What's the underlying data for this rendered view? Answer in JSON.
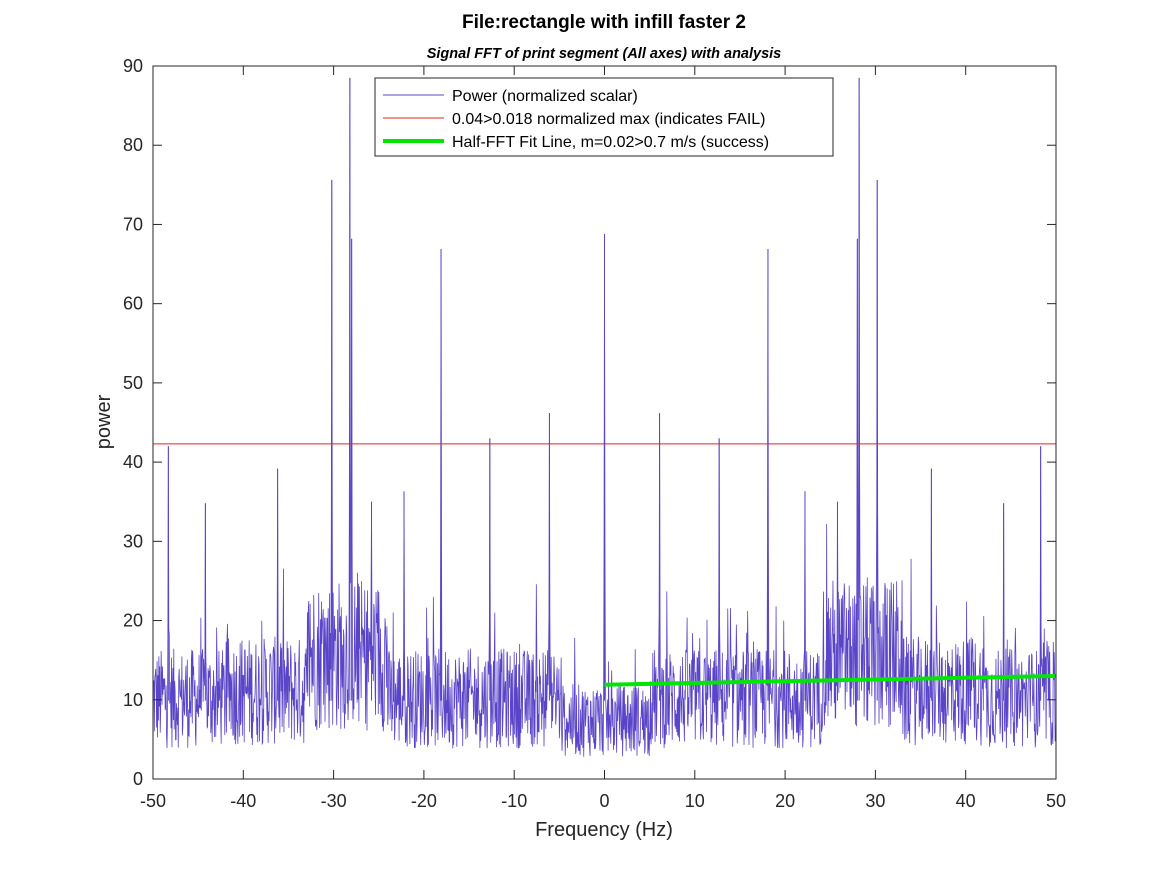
{
  "chart_data": {
    "type": "line",
    "title": "File:rectangle with infill faster 2",
    "subtitle": "Signal FFT of print segment (All axes) with analysis",
    "xlabel": "Frequency (Hz)",
    "ylabel": "power",
    "xlim": [
      -50,
      50
    ],
    "ylim": [
      0,
      90
    ],
    "x_ticks": [
      -50,
      -40,
      -30,
      -20,
      -10,
      0,
      10,
      20,
      30,
      40,
      50
    ],
    "y_ticks": [
      0,
      10,
      20,
      30,
      40,
      50,
      60,
      70,
      80,
      90
    ],
    "grid": false,
    "legend_position": "top-center",
    "series": [
      {
        "name": "Power (normalized scalar)",
        "color": "#5a44c8",
        "kind": "spectrum",
        "noise_level": 11,
        "peaks": [
          {
            "x": -48.3,
            "y": 42
          },
          {
            "x": -44.2,
            "y": 34.8
          },
          {
            "x": -36.2,
            "y": 39.2
          },
          {
            "x": -30.2,
            "y": 75.6
          },
          {
            "x": -28.2,
            "y": 88.5
          },
          {
            "x": -28.0,
            "y": 68.2
          },
          {
            "x": -25.8,
            "y": 35
          },
          {
            "x": -22.2,
            "y": 36.3
          },
          {
            "x": -18.1,
            "y": 66.9
          },
          {
            "x": -12.7,
            "y": 43
          },
          {
            "x": -6.1,
            "y": 46.2
          },
          {
            "x": 0.0,
            "y": 68.8
          },
          {
            "x": 6.1,
            "y": 46.2
          },
          {
            "x": 12.7,
            "y": 43
          },
          {
            "x": 18.1,
            "y": 66.9
          },
          {
            "x": 22.2,
            "y": 36.3
          },
          {
            "x": 25.8,
            "y": 35
          },
          {
            "x": 28.0,
            "y": 68.2
          },
          {
            "x": 28.2,
            "y": 88.5
          },
          {
            "x": 30.2,
            "y": 75.6
          },
          {
            "x": 36.2,
            "y": 39.2
          },
          {
            "x": 44.2,
            "y": 34.8
          },
          {
            "x": 48.3,
            "y": 42
          }
        ]
      },
      {
        "name": "0.04>0.018 normalized max (indicates FAIL)",
        "color": "#e8221b",
        "kind": "hline",
        "y": 42.3
      },
      {
        "name": "Half-FFT Fit Line, m=0.02>0.7 m/s (success)",
        "color": "#00e600",
        "kind": "segment",
        "x": [
          0,
          50
        ],
        "y": [
          11.9,
          13.0
        ]
      }
    ]
  }
}
